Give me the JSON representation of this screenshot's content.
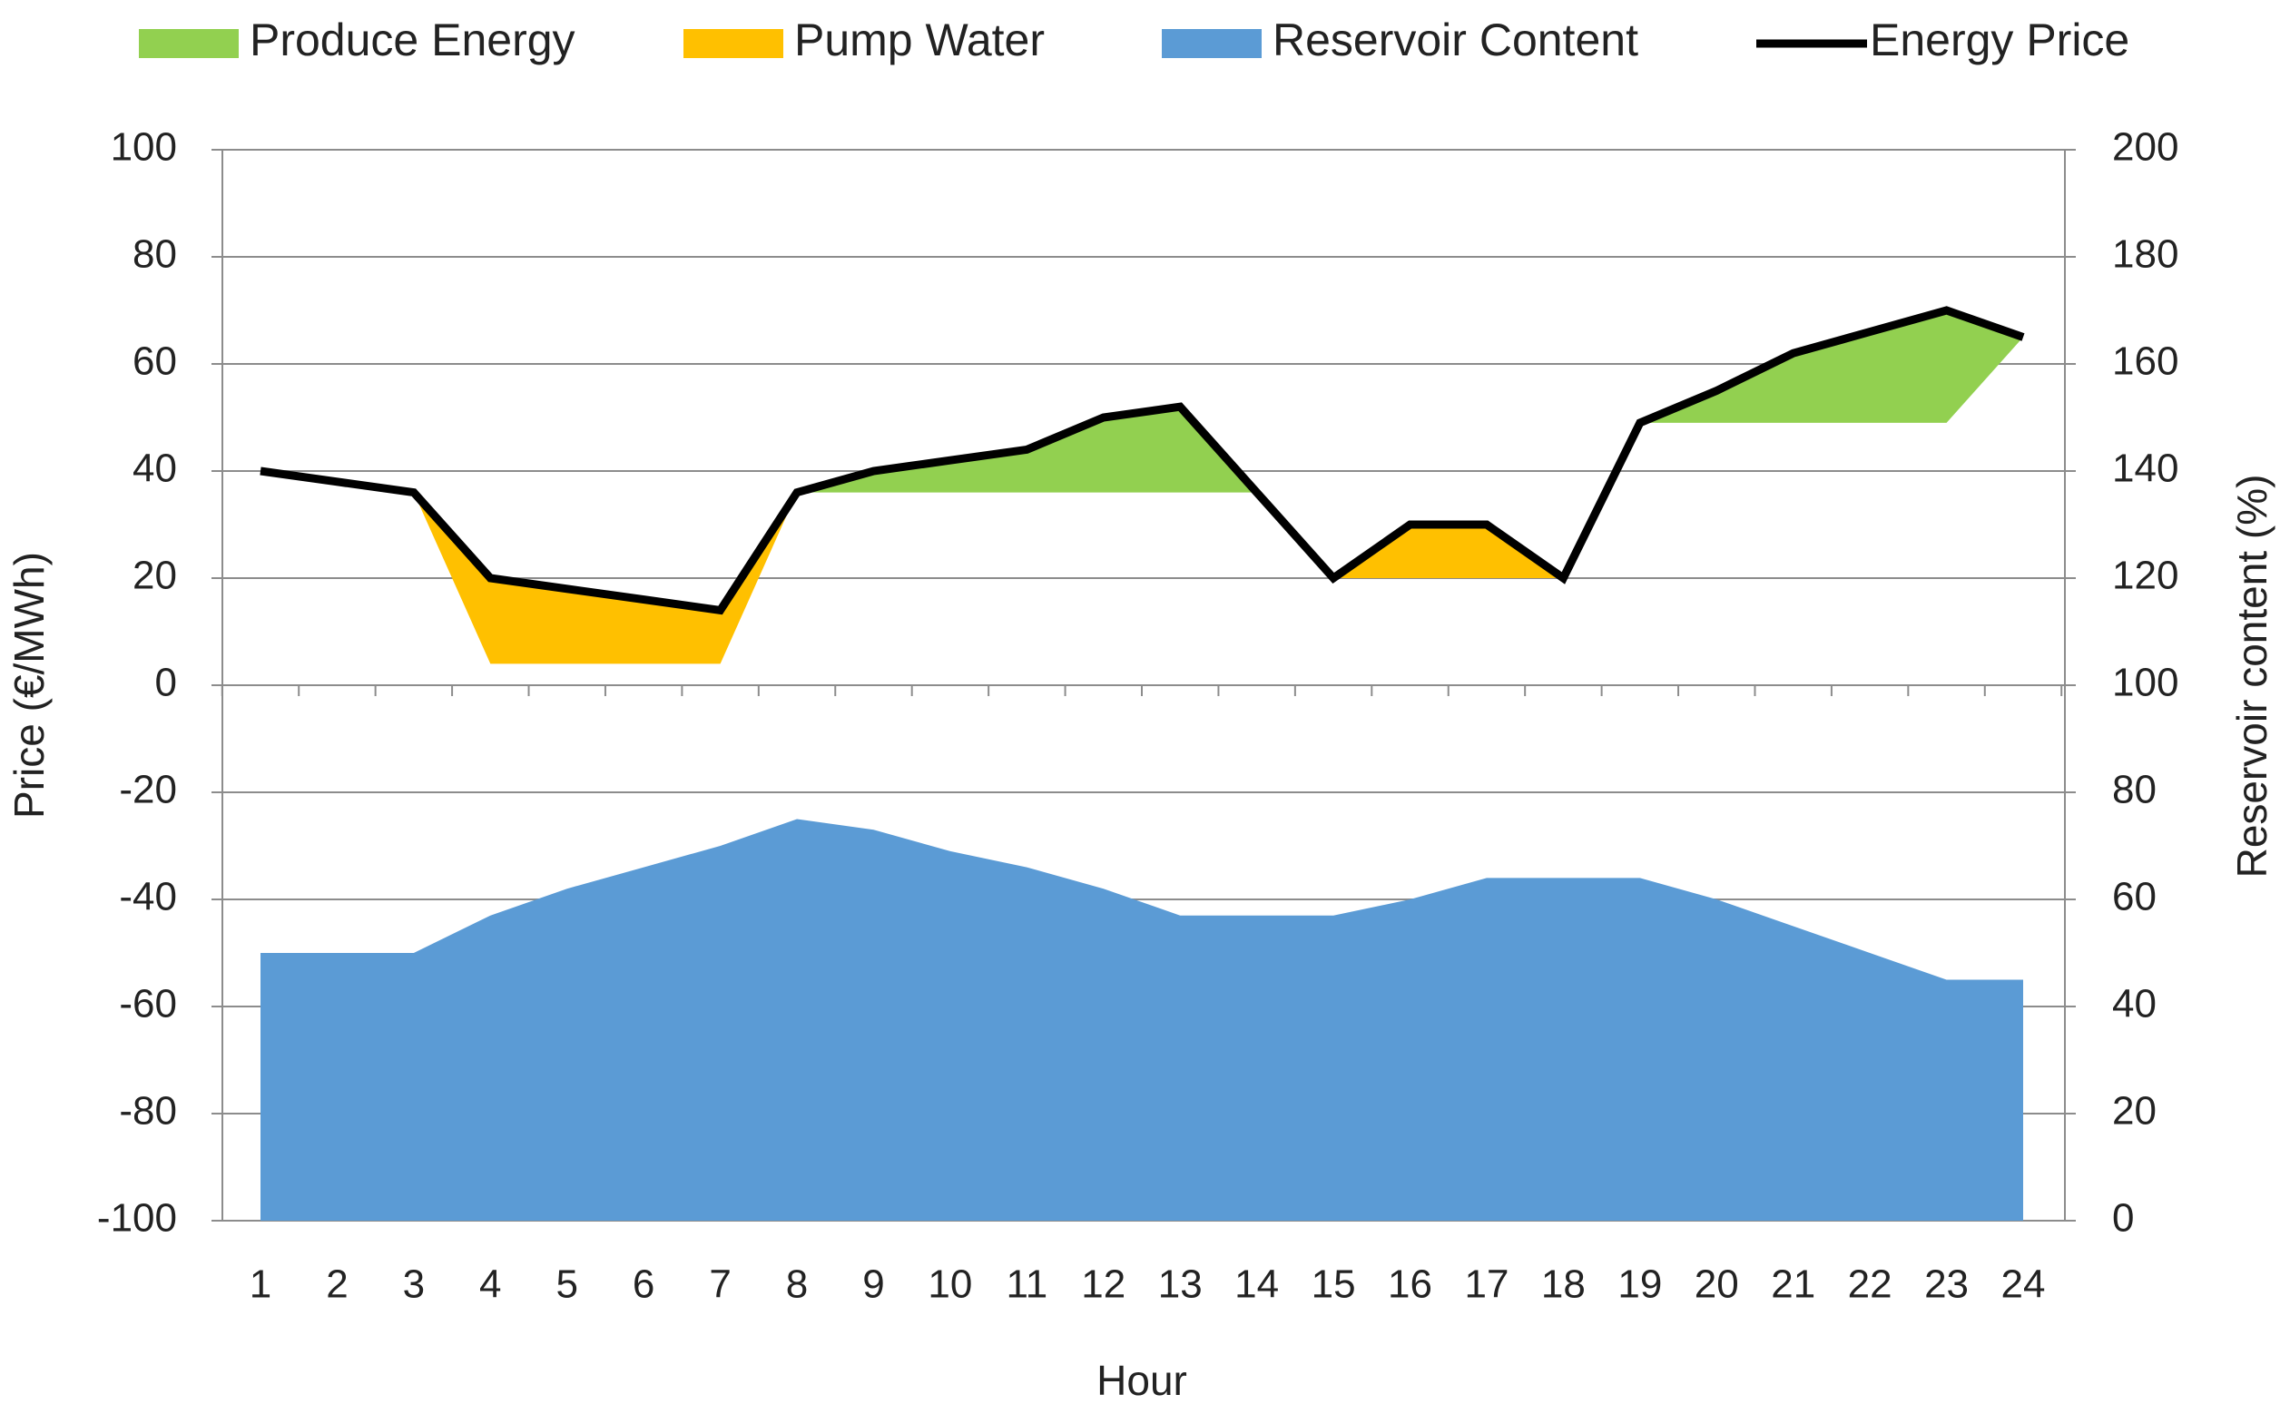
{
  "chart_data": {
    "type": "area",
    "x": [
      1,
      2,
      3,
      4,
      5,
      6,
      7,
      8,
      9,
      10,
      11,
      12,
      13,
      14,
      15,
      16,
      17,
      18,
      19,
      20,
      21,
      22,
      23,
      24
    ],
    "categories": [
      "1",
      "2",
      "3",
      "4",
      "5",
      "6",
      "7",
      "8",
      "9",
      "10",
      "11",
      "12",
      "13",
      "14",
      "15",
      "16",
      "17",
      "18",
      "19",
      "20",
      "21",
      "22",
      "23",
      "24"
    ],
    "xlabel": "Hour",
    "ylabel": "Price (€/MWh)",
    "y2label": "Reservoir content (%)",
    "ylim": [
      -100,
      100
    ],
    "y2lim": [
      0,
      200
    ],
    "y_ticks": [
      "100",
      "80",
      "60",
      "40",
      "20",
      "0",
      "-20",
      "-40",
      "-60",
      "-80",
      "-100"
    ],
    "y2_ticks": [
      "200",
      "180",
      "160",
      "140",
      "120",
      "100",
      "80",
      "60",
      "40",
      "20",
      "0"
    ],
    "grid": true,
    "legend_position": "top",
    "series": [
      {
        "name": "Produce Energy",
        "kind": "band",
        "color": "#92d050",
        "segments": [
          {
            "x": [
              8,
              9,
              10,
              11,
              12,
              13,
              14
            ],
            "upper": [
              36,
              40,
              42,
              44,
              50,
              52,
              36
            ],
            "lower": [
              36,
              36,
              36,
              36,
              36,
              36,
              36
            ]
          },
          {
            "x": [
              19,
              20,
              21,
              22,
              23,
              24
            ],
            "upper": [
              49,
              55,
              62,
              66,
              70,
              65
            ],
            "lower": [
              49,
              49,
              49,
              49,
              49,
              65
            ]
          }
        ]
      },
      {
        "name": "Pump Water",
        "kind": "band",
        "color": "#ffc000",
        "segments": [
          {
            "x": [
              3,
              4,
              5,
              6,
              7,
              8
            ],
            "upper": [
              36,
              20,
              18,
              16,
              14,
              36
            ],
            "lower": [
              36,
              4,
              4,
              4,
              4,
              36
            ]
          },
          {
            "x": [
              15,
              16,
              17,
              18
            ],
            "upper": [
              20,
              30,
              30,
              20
            ],
            "lower": [
              20,
              20,
              20,
              20
            ]
          }
        ]
      },
      {
        "name": "Reservoir Content",
        "kind": "area",
        "axis": "secondary",
        "color": "#5b9bd5",
        "values": [
          50,
          50,
          50,
          57,
          62,
          66,
          70,
          75,
          73,
          69,
          66,
          62,
          57,
          57,
          57,
          60,
          64,
          64,
          64,
          60,
          55,
          50,
          45,
          45
        ]
      },
      {
        "name": "Energy Price",
        "kind": "line",
        "color": "#000000",
        "values": [
          40,
          38,
          36,
          20,
          18,
          16,
          14,
          36,
          40,
          42,
          44,
          50,
          52,
          36,
          20,
          30,
          30,
          20,
          49,
          55,
          62,
          66,
          70,
          65
        ]
      }
    ]
  }
}
